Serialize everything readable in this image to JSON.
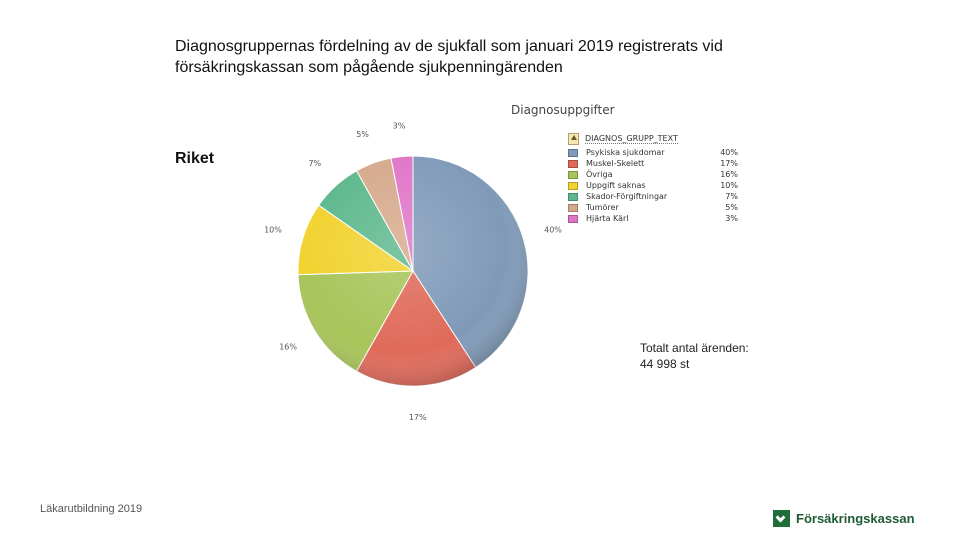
{
  "title": "Diagnosgruppernas fördelning av de sjukfall som januari 2019 registrerats vid försäkringskassan som pågående sjukpenningärenden",
  "region_label": "Riket",
  "total": {
    "label": "Totalt antal ärenden:",
    "value": "44 998 st"
  },
  "footer": {
    "left_text": "Läkarutbildning 2019",
    "logo_text": "Försäkringskassan"
  },
  "chart_data": {
    "type": "pie",
    "title": "Diagnosuppgifter",
    "legend_title": "DIAGNOS_GRUPP_TEXT",
    "legend_position": "right",
    "slices": [
      {
        "name": "Psykiska sjukdomar",
        "value": 40,
        "label": "40%",
        "color": "#7f9ab8"
      },
      {
        "name": "Muskel-Skelett",
        "value": 17,
        "label": "17%",
        "color": "#e06a5a"
      },
      {
        "name": "Övriga",
        "value": 16,
        "label": "16%",
        "color": "#a8c45a"
      },
      {
        "name": "Uppgift saknas",
        "value": 10,
        "label": "10%",
        "color": "#f2d22e"
      },
      {
        "name": "Skador-Förgiftningar",
        "value": 7,
        "label": "7%",
        "color": "#5cb88c"
      },
      {
        "name": "Tumörer",
        "value": 5,
        "label": "5%",
        "color": "#d6a98c"
      },
      {
        "name": "Hjärta Kärl",
        "value": 3,
        "label": "3%",
        "color": "#e075c8"
      }
    ]
  }
}
